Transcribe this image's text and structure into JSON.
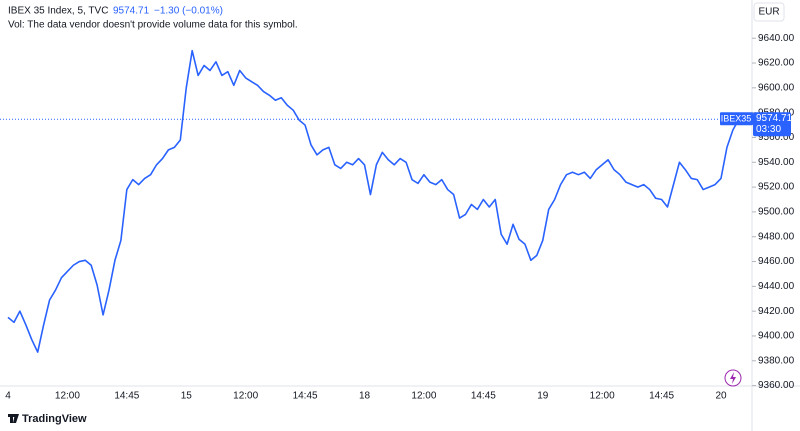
{
  "chart_data": {
    "type": "line",
    "title": "IBEX 35 Index, 5, TVC",
    "last_price": 9574.71,
    "change": "−1.30 (−0.01%)",
    "volume_note": "Vol: The data vendor doesn't provide volume data for this symbol.",
    "currency": "EUR",
    "price_tag_symbol": "IBEX35",
    "price_tag_countdown": "03:30",
    "brand": "TradingView",
    "categories": [
      "4",
      null,
      null,
      null,
      null,
      null,
      null,
      null,
      null,
      null,
      "12:00",
      null,
      null,
      null,
      null,
      null,
      null,
      null,
      null,
      null,
      "14:45",
      null,
      null,
      null,
      null,
      null,
      null,
      null,
      null,
      null,
      "15",
      null,
      null,
      null,
      null,
      null,
      null,
      null,
      null,
      null,
      "12:00",
      null,
      null,
      null,
      null,
      null,
      null,
      null,
      null,
      null,
      "14:45",
      null,
      null,
      null,
      null,
      null,
      null,
      null,
      null,
      null,
      "18",
      null,
      null,
      null,
      null,
      null,
      null,
      null,
      null,
      null,
      "12:00",
      null,
      null,
      null,
      null,
      null,
      null,
      null,
      null,
      null,
      "14:45",
      null,
      null,
      null,
      null,
      null,
      null,
      null,
      null,
      null,
      "19",
      null,
      null,
      null,
      null,
      null,
      null,
      null,
      null,
      null,
      "12:00",
      null,
      null,
      null,
      null,
      null,
      null,
      null,
      null,
      null,
      "14:45",
      null,
      null,
      null,
      null,
      null,
      null,
      null,
      null,
      null,
      "20",
      null,
      null,
      null
    ],
    "series": [
      {
        "name": "IBEX 35",
        "color": "#2962ff",
        "values": [
          9415,
          9411,
          9420,
          9409,
          9397,
          9387,
          9409,
          9429,
          9437,
          9447,
          9452,
          9457,
          9460,
          9461,
          9457,
          9441,
          9417,
          9437,
          9461,
          9477,
          9518,
          9526,
          9522,
          9527,
          9530,
          9538,
          9543,
          9550,
          9552,
          9558,
          9600,
          9630,
          9610,
          9618,
          9614,
          9621,
          9610,
          9613,
          9602,
          9614,
          9608,
          9605,
          9602,
          9597,
          9594,
          9590,
          9592,
          9586,
          9582,
          9574,
          9570,
          9554,
          9546,
          9550,
          9552,
          9538,
          9535,
          9540,
          9538,
          9543,
          9538,
          9514,
          9538,
          9548,
          9542,
          9538,
          9543,
          9540,
          9526,
          9523,
          9530,
          9524,
          9522,
          9526,
          9518,
          9514,
          9495,
          9498,
          9506,
          9502,
          9510,
          9504,
          9510,
          9482,
          9474,
          9490,
          9478,
          9474,
          9461,
          9465,
          9477,
          9502,
          9510,
          9522,
          9530,
          9532,
          9530,
          9532,
          9527,
          9534,
          9538,
          9542,
          9534,
          9530,
          9524,
          9522,
          9520,
          9522,
          9518,
          9511,
          9510,
          9504,
          9522,
          9540,
          9534,
          9527,
          9526,
          9518,
          9520,
          9522,
          9527,
          9552,
          9566,
          9574.71
        ]
      }
    ],
    "ylim": [
      9350,
      9670
    ],
    "yticks": [
      {
        "value": 9360,
        "label": "9360.00"
      },
      {
        "value": 9380,
        "label": "9380.00"
      },
      {
        "value": 9400,
        "label": "9400.00"
      },
      {
        "value": 9420,
        "label": "9420.00"
      },
      {
        "value": 9440,
        "label": "9440.00"
      },
      {
        "value": 9460,
        "label": "9460.00"
      },
      {
        "value": 9480,
        "label": "9480.00"
      },
      {
        "value": 9500,
        "label": "9500.00"
      },
      {
        "value": 9520,
        "label": "9520.00"
      },
      {
        "value": 9540,
        "label": "9540.00"
      },
      {
        "value": 9560,
        "label": "9560.00"
      },
      {
        "value": 9580,
        "label": "9580.00"
      },
      {
        "value": 9600,
        "label": "9600.00"
      },
      {
        "value": 9620,
        "label": "9620.00"
      },
      {
        "value": 9640,
        "label": "9640.00"
      }
    ],
    "grid": false
  }
}
